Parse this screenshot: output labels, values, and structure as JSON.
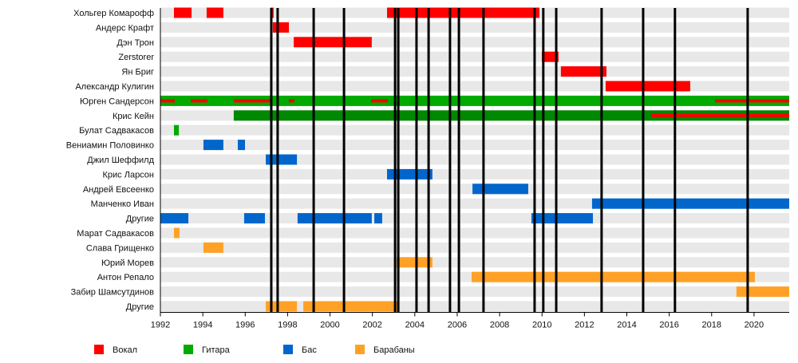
{
  "chart_data": {
    "type": "timeline",
    "title": "",
    "xlabel": "",
    "ylabel": "",
    "xlim": [
      1992,
      2021.66
    ],
    "x_ticks": [
      1992,
      1994,
      1996,
      1998,
      2000,
      2002,
      2004,
      2006,
      2008,
      2010,
      2012,
      2014,
      2016,
      2018,
      2020
    ],
    "colors": {
      "vocal": "#ff0000",
      "guitar": "#00aa00",
      "guitar2": "#008800",
      "bass": "#0066cc",
      "drums": "#ffa126",
      "row_bg": "#e8e8e8",
      "album_line": "#000000"
    },
    "legend": [
      {
        "role": "vocal",
        "label": "Вокал"
      },
      {
        "role": "guitar",
        "label": "Гитара"
      },
      {
        "role": "bass",
        "label": "Бас"
      },
      {
        "role": "drums",
        "label": "Барабаны"
      }
    ],
    "rows": [
      {
        "name": "Хольгер Комарофф",
        "bars": [
          {
            "role": "vocal",
            "from": 1992.64,
            "to": 1993.47
          },
          {
            "role": "vocal",
            "from": 1994.18,
            "to": 1994.97
          },
          {
            "role": "vocal",
            "from": 1997.19,
            "to": 1997.34
          },
          {
            "role": "vocal",
            "from": 2002.69,
            "to": 2009.88
          }
        ]
      },
      {
        "name": "Андерс Крафт",
        "bars": [
          {
            "role": "vocal",
            "from": 1997.3,
            "to": 1998.06
          }
        ]
      },
      {
        "name": "Дэн Трон",
        "bars": [
          {
            "role": "vocal",
            "from": 1998.29,
            "to": 2001.97
          }
        ]
      },
      {
        "name": "Zerstorer",
        "bars": [
          {
            "role": "vocal",
            "from": 2009.99,
            "to": 2010.78
          }
        ]
      },
      {
        "name": "Ян Бриг",
        "bars": [
          {
            "role": "vocal",
            "from": 2010.89,
            "to": 2013.04
          }
        ]
      },
      {
        "name": "Александр Кулигин",
        "bars": [
          {
            "role": "vocal",
            "from": 2013.0,
            "to": 2016.99
          }
        ]
      },
      {
        "name": "Юрген Сандерсон",
        "bars": [
          {
            "role": "guitar",
            "from": 1992,
            "to": 2021.66
          }
        ],
        "stripes": [
          {
            "role": "vocal",
            "from": 1992,
            "to": 1992.68
          },
          {
            "role": "vocal",
            "from": 1993.43,
            "to": 1994.22
          },
          {
            "role": "vocal",
            "from": 1995.46,
            "to": 1997.27
          },
          {
            "role": "vocal",
            "from": 1998.06,
            "to": 1998.32
          },
          {
            "role": "vocal",
            "from": 2001.94,
            "to": 2002.73
          },
          {
            "role": "vocal",
            "from": 2018.16,
            "to": 2021.66
          }
        ]
      },
      {
        "name": "Крис Кейн",
        "bars": [
          {
            "role": "guitar2",
            "from": 1995.46,
            "to": 2021.66
          }
        ],
        "stripes": [
          {
            "role": "vocal",
            "from": 2015.15,
            "to": 2021.66
          }
        ]
      },
      {
        "name": "Булат Садвакасов",
        "bars": [
          {
            "role": "guitar",
            "from": 1992.64,
            "to": 1992.87
          }
        ]
      },
      {
        "name": "Вениамин Половинко",
        "bars": [
          {
            "role": "bass",
            "from": 1994.03,
            "to": 1994.97
          },
          {
            "role": "bass",
            "from": 1995.65,
            "to": 1995.99
          }
        ]
      },
      {
        "name": "Джил Шеффилд",
        "bars": [
          {
            "role": "bass",
            "from": 1996.97,
            "to": 1998.44
          }
        ]
      },
      {
        "name": "Крис Ларсон",
        "bars": [
          {
            "role": "bass",
            "from": 2002.69,
            "to": 2004.83
          }
        ]
      },
      {
        "name": "Андрей Евсеенко",
        "bars": [
          {
            "role": "bass",
            "from": 2006.72,
            "to": 2009.35
          }
        ]
      },
      {
        "name": "Манченко Иван",
        "bars": [
          {
            "role": "bass",
            "from": 2012.36,
            "to": 2021.66
          }
        ]
      },
      {
        "name": "Другие",
        "bars": [
          {
            "role": "bass",
            "from": 1992,
            "to": 1993.32
          },
          {
            "role": "bass",
            "from": 1995.95,
            "to": 1996.93
          },
          {
            "role": "bass",
            "from": 1998.47,
            "to": 2001.97
          },
          {
            "role": "bass",
            "from": 2002.09,
            "to": 2002.46
          },
          {
            "role": "bass",
            "from": 2009.5,
            "to": 2012.4
          }
        ]
      },
      {
        "name": "Марат Садвакасов",
        "bars": [
          {
            "role": "drums",
            "from": 1992.64,
            "to": 1992.9
          }
        ]
      },
      {
        "name": "Слава Грищенко",
        "bars": [
          {
            "role": "drums",
            "from": 1994.03,
            "to": 1994.97
          }
        ]
      },
      {
        "name": "Юрий Морев",
        "bars": [
          {
            "role": "drums",
            "from": 2003.14,
            "to": 2004.83
          }
        ]
      },
      {
        "name": "Антон Репало",
        "bars": [
          {
            "role": "drums",
            "from": 2006.68,
            "to": 2020.04
          }
        ]
      },
      {
        "name": "Забир Шамсутдинов",
        "bars": [
          {
            "role": "drums",
            "from": 2019.17,
            "to": 2021.66
          }
        ]
      },
      {
        "name": "Другие",
        "bars": [
          {
            "role": "drums",
            "from": 1996.97,
            "to": 1998.44
          },
          {
            "role": "drums",
            "from": 1998.74,
            "to": 2003.18
          }
        ]
      }
    ],
    "album_releases": [
      1997.23,
      1997.53,
      1999.23,
      2000.66,
      2003.07,
      2003.22,
      2004.08,
      2004.65,
      2005.66,
      2006.08,
      2007.24,
      2009.65,
      2010.06,
      2010.67,
      2012.81,
      2014.77,
      2016.27,
      2019.7
    ]
  }
}
